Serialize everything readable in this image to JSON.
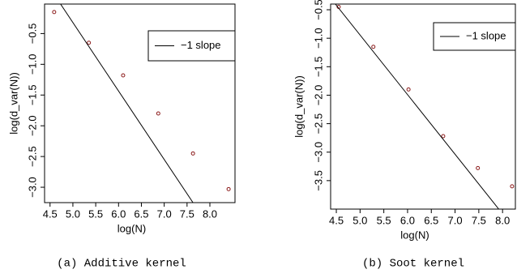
{
  "chart_data": [
    {
      "type": "scatter",
      "xlabel": "log(N)",
      "ylabel": "log(d_var(N))",
      "caption": "(a) Additive kernel",
      "xlim": [
        4.38,
        8.55
      ],
      "ylim": [
        -3.25,
        -0.02
      ],
      "xticks": [
        4.5,
        {
          "value": 5.0,
          "label": "5.0"
        },
        5.5,
        {
          "value": 6.0,
          "label": "6.0"
        },
        6.5,
        {
          "value": 7.0,
          "label": "7.0"
        },
        7.5,
        {
          "value": 8.0,
          "label": "8.0"
        }
      ],
      "yticks": [
        {
          "value": -0.5,
          "label": "−0.5"
        },
        {
          "value": -1.0,
          "label": "−1.0"
        },
        {
          "value": -1.5,
          "label": "−1.5"
        },
        {
          "value": -2.0,
          "label": "−2.0"
        },
        {
          "value": -2.5,
          "label": "−2.5"
        },
        {
          "value": -3.0,
          "label": "−3.0"
        }
      ],
      "legend": "upper right",
      "series": [
        {
          "color": "#8b1a1a",
          "x": [
            4.59,
            5.35,
            6.1,
            6.87,
            7.63,
            8.41
          ],
          "values": [
            -0.15,
            -0.65,
            -1.18,
            -1.8,
            -2.45,
            -3.03
          ]
        },
        {
          "name": "−1 slope",
          "type": "line",
          "color": "#000000",
          "x": [
            4.73,
            7.63
          ],
          "values": [
            -0.02,
            -3.25
          ]
        }
      ]
    },
    {
      "type": "scatter",
      "xlabel": "log(N)",
      "ylabel": "log(d_var(N))",
      "caption": "(b) Soot kernel",
      "xlim": [
        4.38,
        8.27
      ],
      "ylim": [
        -4.0,
        -0.4
      ],
      "xticks": [
        4.5,
        {
          "value": 5.0,
          "label": "5.0"
        },
        5.5,
        {
          "value": 6.0,
          "label": "6.0"
        },
        6.5,
        {
          "value": 7.0,
          "label": "7.0"
        },
        7.5,
        {
          "value": 8.0,
          "label": "8.0"
        }
      ],
      "yticks": [
        {
          "value": -0.5,
          "label": "−0.5"
        },
        {
          "value": -1.0,
          "label": "−1.0"
        },
        {
          "value": -1.5,
          "label": "−1.5"
        },
        {
          "value": -2.0,
          "label": "−2.0"
        },
        {
          "value": -2.5,
          "label": "−2.5"
        },
        {
          "value": -3.0,
          "label": "−3.0"
        },
        {
          "value": -3.5,
          "label": "−3.5"
        }
      ],
      "legend": "upper right",
      "series": [
        {
          "color": "#8b1a1a",
          "x": [
            4.55,
            5.28,
            6.02,
            6.75,
            7.48,
            8.2
          ],
          "values": [
            -0.45,
            -1.15,
            -1.9,
            -2.72,
            -3.28,
            -3.6
          ]
        },
        {
          "name": "−1 slope",
          "type": "line",
          "color": "#000000",
          "x": [
            4.48,
            7.92
          ],
          "values": [
            -0.4,
            -4.0
          ]
        }
      ]
    }
  ]
}
